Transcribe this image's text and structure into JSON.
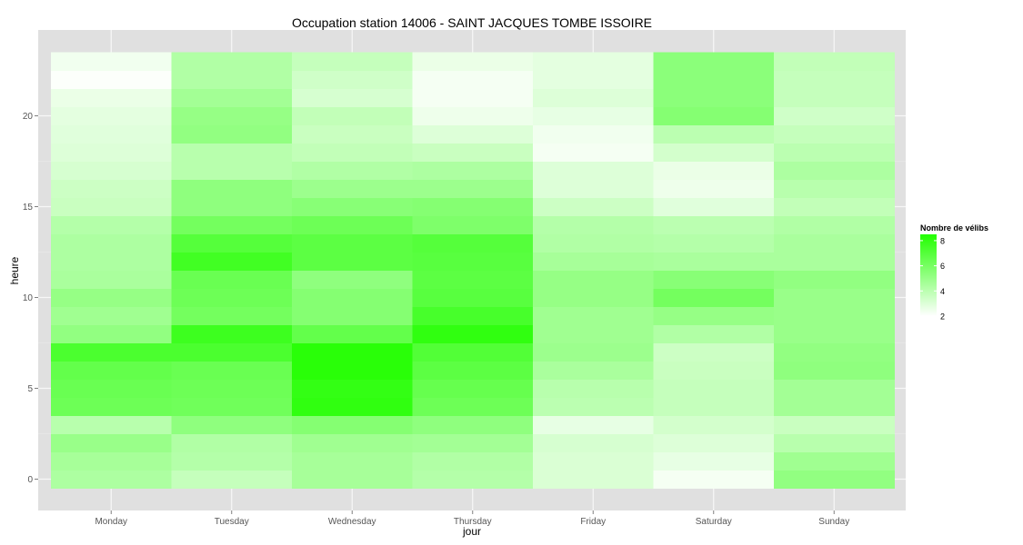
{
  "chart_data": {
    "type": "heatmap",
    "title": "Occupation station 14006 - SAINT JACQUES TOMBE ISSOIRE",
    "xlabel": "jour",
    "ylabel": "heure",
    "x_categories": [
      "Monday",
      "Tuesday",
      "Wednesday",
      "Thursday",
      "Friday",
      "Saturday",
      "Sunday"
    ],
    "y_range": [
      0,
      23
    ],
    "y_ticks": [
      0,
      5,
      10,
      15,
      20
    ],
    "y_tick_labels": [
      "0",
      "5",
      "10",
      "15",
      "20"
    ],
    "grid": true,
    "legend": {
      "title": "Nombre de vélibs",
      "placement": "right",
      "min": 2,
      "max": 8.5,
      "ticks": [
        2,
        4,
        6,
        8
      ],
      "tick_labels": [
        "2",
        "4",
        "6",
        "8"
      ]
    },
    "colors": {
      "low": "#ffffff",
      "high": "#22ff00",
      "panel_background": "#e0e0e0",
      "grid_line": "#f5f5f5",
      "axis_text": "#555555",
      "text": "#000000"
    },
    "values": {
      "Monday": [
        4.4,
        4.6,
        5.0,
        4.1,
        6.3,
        6.4,
        6.6,
        7.3,
        5.2,
        4.8,
        5.1,
        4.5,
        4.4,
        4.4,
        4.2,
        3.6,
        3.5,
        3.2,
        3.0,
        2.9,
        2.8,
        2.6,
        2.1,
        2.4
      ],
      "Tuesday": [
        3.7,
        4.2,
        4.3,
        5.3,
        6.2,
        6.3,
        6.4,
        7.3,
        7.7,
        6.1,
        6.3,
        6.4,
        7.6,
        7.0,
        6.1,
        5.3,
        5.3,
        4.1,
        4.1,
        5.2,
        5.1,
        4.7,
        4.3,
        4.3
      ],
      "Wednesday": [
        4.6,
        4.6,
        4.8,
        5.6,
        8.1,
        8.0,
        8.3,
        8.3,
        6.6,
        5.6,
        5.6,
        5.3,
        6.8,
        6.8,
        6.3,
        5.5,
        4.9,
        4.3,
        3.8,
        3.6,
        3.8,
        3.2,
        3.4,
        3.7
      ],
      "Thursday": [
        4.2,
        4.3,
        4.7,
        5.3,
        6.3,
        6.5,
        6.8,
        7.1,
        8.1,
        7.4,
        6.9,
        6.8,
        6.9,
        7.0,
        5.8,
        5.6,
        4.9,
        4.4,
        3.6,
        3.0,
        2.5,
        2.3,
        2.3,
        2.6
      ],
      "Friday": [
        3.1,
        3.1,
        3.2,
        2.7,
        4.0,
        4.1,
        4.5,
        4.9,
        4.8,
        4.8,
        5.1,
        5.1,
        4.6,
        4.3,
        4.2,
        3.5,
        3.0,
        3.0,
        2.3,
        2.4,
        2.7,
        3.0,
        2.8,
        2.8
      ],
      "Saturday": [
        2.3,
        2.7,
        3.0,
        3.3,
        3.7,
        3.7,
        3.6,
        3.5,
        4.3,
        5.1,
        6.1,
        5.5,
        4.5,
        4.2,
        4.0,
        2.9,
        2.5,
        2.6,
        3.3,
        4.0,
        5.6,
        5.4,
        5.4,
        5.4
      ],
      "Sunday": [
        5.2,
        4.8,
        4.1,
        3.6,
        4.7,
        4.7,
        5.3,
        5.2,
        5.0,
        5.0,
        5.0,
        5.2,
        4.5,
        4.5,
        4.3,
        3.8,
        4.1,
        4.4,
        4.0,
        3.7,
        3.4,
        3.7,
        3.7,
        3.8
      ]
    }
  }
}
